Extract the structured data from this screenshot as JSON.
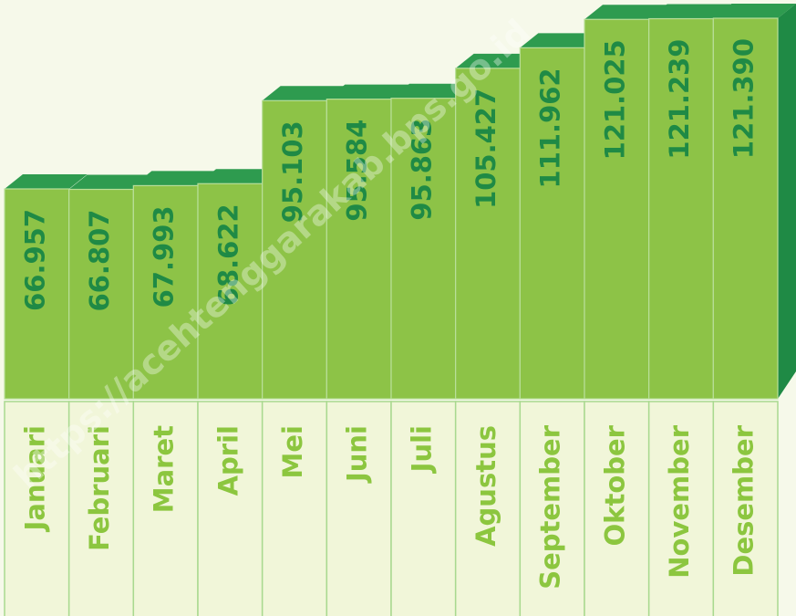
{
  "chart_data": {
    "type": "bar",
    "categories": [
      "Januari",
      "Februari",
      "Maret",
      "April",
      "Mei",
      "Juni",
      "Juli",
      "Agustus",
      "September",
      "Oktober",
      "November",
      "Desember"
    ],
    "values": [
      66957,
      66807,
      67993,
      68622,
      95103,
      95584,
      95863,
      105427,
      111962,
      121025,
      121239,
      121390
    ],
    "value_labels": [
      "66.957",
      "66.807",
      "67.993",
      "68.622",
      "95.103",
      "95.584",
      "95.863",
      "105.427",
      "111.962",
      "121.025",
      "121.239",
      "121.390"
    ],
    "color": "#8dc347",
    "watermark": "https://acehtenggarakab.bps.go.id"
  }
}
